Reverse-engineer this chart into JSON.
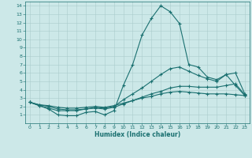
{
  "xlabel": "Humidex (Indice chaleur)",
  "ylabel": "",
  "background_color": "#cce8e8",
  "line_color": "#1a7070",
  "grid_color": "#aacccc",
  "x_values": [
    0,
    1,
    2,
    3,
    4,
    5,
    6,
    7,
    8,
    9,
    10,
    11,
    12,
    13,
    14,
    15,
    16,
    17,
    18,
    19,
    20,
    21,
    22,
    23
  ],
  "xlim": [
    -0.5,
    23.5
  ],
  "ylim": [
    0,
    14.5
  ],
  "yticks": [
    1,
    2,
    3,
    4,
    5,
    6,
    7,
    8,
    9,
    10,
    11,
    12,
    13,
    14
  ],
  "xticks": [
    0,
    1,
    2,
    3,
    4,
    5,
    6,
    7,
    8,
    9,
    10,
    11,
    12,
    13,
    14,
    15,
    16,
    17,
    18,
    19,
    20,
    21,
    22,
    23
  ],
  "line1_y": [
    2.5,
    2.1,
    1.7,
    1.0,
    0.9,
    0.9,
    1.3,
    1.4,
    1.0,
    1.5,
    4.5,
    7.0,
    10.5,
    12.5,
    14.0,
    13.3,
    11.9,
    7.0,
    6.7,
    5.5,
    5.2,
    5.8,
    4.5,
    3.3
  ],
  "line2_y": [
    2.5,
    2.1,
    1.8,
    1.5,
    1.5,
    1.5,
    1.7,
    1.9,
    1.8,
    2.0,
    2.8,
    3.5,
    4.2,
    5.0,
    5.8,
    6.5,
    6.7,
    6.2,
    5.7,
    5.3,
    5.0,
    5.8,
    6.0,
    3.5
  ],
  "line3_y": [
    2.5,
    2.2,
    2.0,
    1.7,
    1.6,
    1.6,
    1.7,
    1.8,
    1.7,
    1.9,
    2.3,
    2.7,
    3.1,
    3.5,
    3.8,
    4.2,
    4.4,
    4.4,
    4.3,
    4.3,
    4.3,
    4.5,
    4.7,
    3.4
  ],
  "line4_y": [
    2.5,
    2.2,
    2.1,
    1.9,
    1.8,
    1.8,
    1.9,
    2.0,
    1.9,
    2.1,
    2.4,
    2.7,
    3.0,
    3.2,
    3.5,
    3.7,
    3.8,
    3.7,
    3.6,
    3.5,
    3.5,
    3.5,
    3.4,
    3.3
  ],
  "xlabel_fontsize": 5.5,
  "tick_fontsize": 4.5,
  "linewidth": 0.8,
  "markersize": 2.5
}
